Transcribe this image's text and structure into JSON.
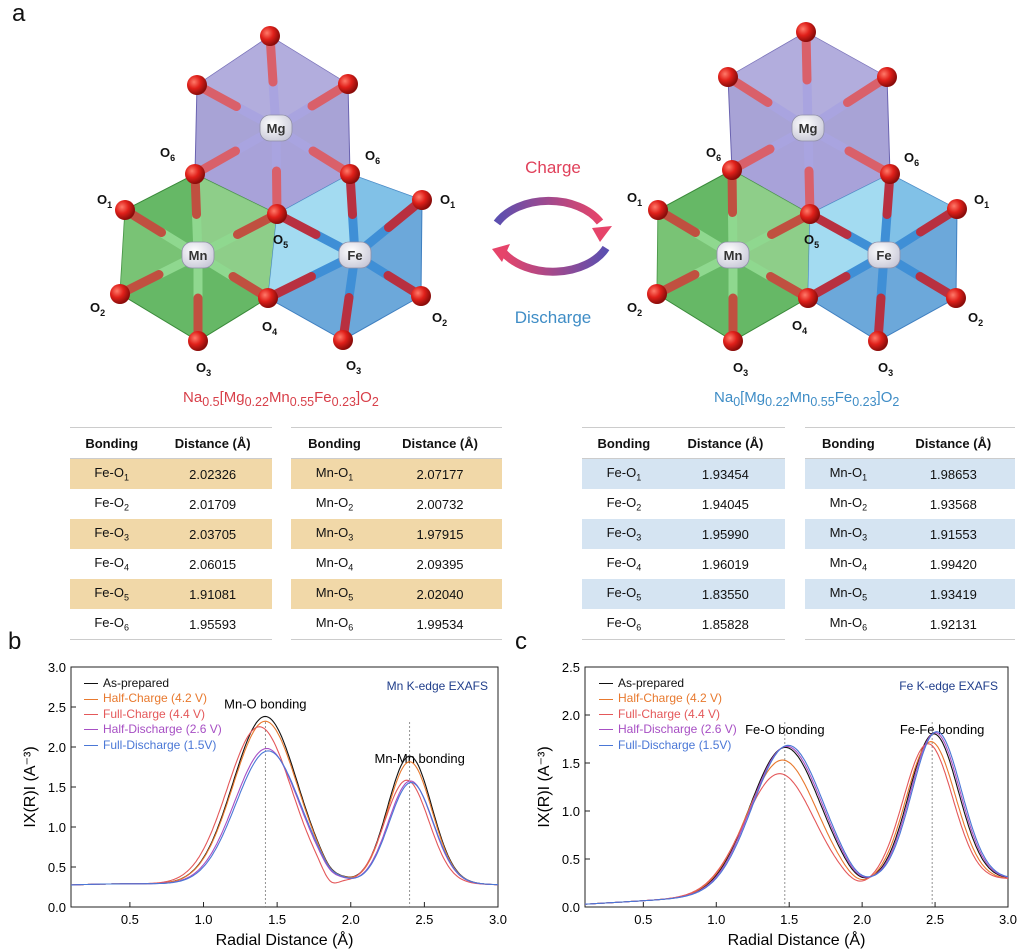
{
  "panels": {
    "a": "a",
    "b": "b",
    "c": "c"
  },
  "structures": [
    {
      "formula": {
        "p1": "Na",
        "s1": "0.5",
        "p2": "[Mg",
        "s2": "0.22",
        "p3": "Mn",
        "s3": "0.55",
        "p4": "Fe",
        "s4": "0.23",
        "p5": "]O",
        "s5": "2"
      },
      "color": "#d8404a"
    },
    {
      "formula": {
        "p1": "Na",
        "s1": "0",
        "p2": "[Mg",
        "s2": "0.22",
        "p3": "Mn",
        "s3": "0.55",
        "p4": "Fe",
        "s4": "0.23",
        "p5": "]O",
        "s5": "2"
      },
      "color": "#3f8dc6"
    }
  ],
  "atoms": {
    "mg": "Mg",
    "mn": "Mn",
    "fe": "Fe",
    "o": "O"
  },
  "cycle": {
    "charge": "Charge",
    "discharge": "Discharge"
  },
  "table_headers": {
    "bonding": "Bonding",
    "distance": "Distance (Å)"
  },
  "tables": [
    {
      "rows": [
        [
          "Fe-O",
          "1",
          "2.02326"
        ],
        [
          "Fe-O",
          "2",
          "2.01709"
        ],
        [
          "Fe-O",
          "3",
          "2.03705"
        ],
        [
          "Fe-O",
          "4",
          "2.06015"
        ],
        [
          "Fe-O",
          "5",
          "1.91081"
        ],
        [
          "Fe-O",
          "6",
          "1.95593"
        ]
      ]
    },
    {
      "rows": [
        [
          "Mn-O",
          "1",
          "2.07177"
        ],
        [
          "Mn-O",
          "2",
          "2.00732"
        ],
        [
          "Mn-O",
          "3",
          "1.97915"
        ],
        [
          "Mn-O",
          "4",
          "2.09395"
        ],
        [
          "Mn-O",
          "5",
          "2.02040"
        ],
        [
          "Mn-O",
          "6",
          "1.99534"
        ]
      ]
    },
    {
      "rows": [
        [
          "Fe-O",
          "1",
          "1.93454"
        ],
        [
          "Fe-O",
          "2",
          "1.94045"
        ],
        [
          "Fe-O",
          "3",
          "1.95990"
        ],
        [
          "Fe-O",
          "4",
          "1.96019"
        ],
        [
          "Fe-O",
          "5",
          "1.83550"
        ],
        [
          "Fe-O",
          "6",
          "1.85828"
        ]
      ]
    },
    {
      "rows": [
        [
          "Mn-O",
          "1",
          "1.98653"
        ],
        [
          "Mn-O",
          "2",
          "1.93568"
        ],
        [
          "Mn-O",
          "3",
          "1.91553"
        ],
        [
          "Mn-O",
          "4",
          "1.99420"
        ],
        [
          "Mn-O",
          "5",
          "1.93419"
        ],
        [
          "Mn-O",
          "6",
          "1.92131"
        ]
      ]
    }
  ],
  "legend": [
    {
      "label": "As-prepared",
      "color": "#111111"
    },
    {
      "label": "Half-Charge (4.2 V)",
      "color": "#e8792e"
    },
    {
      "label": "Full-Charge (4.4 V)",
      "color": "#e4585a"
    },
    {
      "label": "Half-Discharge (2.6 V)",
      "color": "#a74fc4"
    },
    {
      "label": "Full-Discharge (1.5V)",
      "color": "#4a77d6"
    }
  ],
  "chart_data": [
    {
      "type": "line",
      "title": "Mn K-edge EXAFS",
      "xlabel": "Radial Distance (Å)",
      "ylabel": "IX(R)I (A⁻³)",
      "xlim": [
        0.1,
        3.0
      ],
      "ylim": [
        0.0,
        3.0
      ],
      "xticks": [
        "0.5",
        "1.0",
        "1.5",
        "2.0",
        "2.5",
        "3.0"
      ],
      "yticks": [
        "0.0",
        "0.5",
        "1.0",
        "1.5",
        "2.0",
        "2.5",
        "3.0"
      ],
      "annotations": [
        {
          "text": "Mn-O bonding",
          "x": 1.42
        },
        {
          "text": "Mn-Mn bonding",
          "x": 2.4
        }
      ],
      "reference_lines_x": [
        1.42,
        2.4
      ],
      "series": [
        {
          "name": "As-prepared",
          "peak1": 2.33,
          "peak2": 1.7
        },
        {
          "name": "Half-Charge (4.2 V)",
          "peak1": 2.27,
          "peak2": 1.63
        },
        {
          "name": "Full-Charge (4.4 V)",
          "peak1": 2.2,
          "peak2": 1.4
        },
        {
          "name": "Half-Discharge (2.6 V)",
          "peak1": 1.93,
          "peak2": 1.39
        },
        {
          "name": "Full-Discharge (1.5V)",
          "peak1": 1.9,
          "peak2": 1.37
        }
      ]
    },
    {
      "type": "line",
      "title": "Fe K-edge EXAFS",
      "xlabel": "Radial Distance (Å)",
      "ylabel": "IX(R)I (A⁻³)",
      "xlim": [
        0.1,
        3.0
      ],
      "ylim": [
        0.0,
        2.5
      ],
      "xticks": [
        "0.5",
        "1.0",
        "1.5",
        "2.0",
        "2.5",
        "3.0"
      ],
      "yticks": [
        "0.0",
        "0.5",
        "1.0",
        "1.5",
        "2.0",
        "2.5"
      ],
      "annotations": [
        {
          "text": "Fe-O bonding",
          "x": 1.47
        },
        {
          "text": "Fe-Fe bonding",
          "x": 2.48
        }
      ],
      "reference_lines_x": [
        1.47,
        2.48
      ],
      "series": [
        {
          "name": "As-prepared",
          "peak1": 1.63,
          "peak2": 1.66
        },
        {
          "name": "Half-Charge (4.2 V)",
          "peak1": 1.5,
          "peak2": 1.58
        },
        {
          "name": "Full-Charge (4.4 V)",
          "peak1": 1.36,
          "peak2": 1.56
        },
        {
          "name": "Half-Discharge (2.6 V)",
          "peak1": 1.64,
          "peak2": 1.67
        },
        {
          "name": "Full-Discharge (1.5V)",
          "peak1": 1.65,
          "peak2": 1.68
        }
      ]
    }
  ]
}
